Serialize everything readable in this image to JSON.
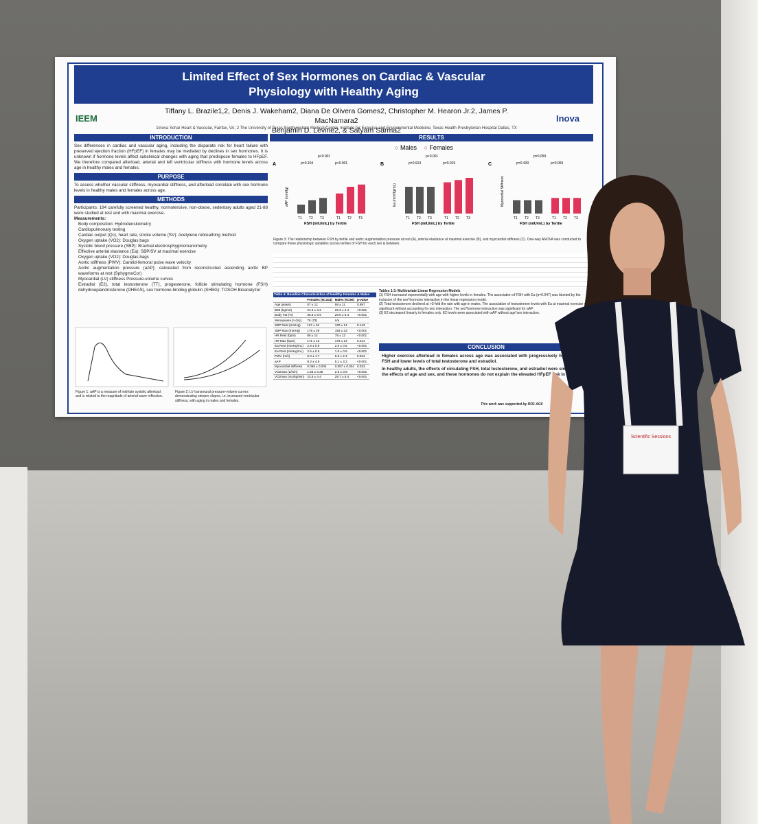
{
  "poster": {
    "title": "Limited Effect of Sex Hormones on Cardiac & Vascular Physiology with Healthy Aging",
    "authors": [
      "Tiffany L. Brazile1,2, Denis J. Wakeham2, Diana De Olivera Gomes2, Christopher M. Hearon Jr.2, James P. MacNamara2",
      "Benjamin D. Levine2, & Satyam Sarma2"
    ],
    "affiliation": "1Inova Schar Heart & Vascular, Fairfax, VA; 2 The University of Texas Southwestern Medical Center, Institute for Exercise and Environmental Medicine, Texas Health Presbyterian Hospital Dallas, TX",
    "logos": [
      "IEEM",
      "Inova"
    ],
    "introduction": {
      "heading": "INTRODUCTION",
      "text": "Sex differences in cardiac and vascular aging, including the disparate risk for heart failure with preserved ejection fraction (HFpEF) in females may be mediated by declines in sex hormones. It is unknown if hormone levels affect subclinical changes with aging that predispose females to HFpEF. We therefore compared afterload, arterial and left ventricular stiffness with hormone levels across age in healthy males and females."
    },
    "purpose": {
      "heading": "PURPOSE",
      "text": "To assess whether vascular stiffness, myocardial stiffness, and afterload correlate with sex hormone levels in healthy males and females across age."
    },
    "methods": {
      "heading": "METHODS",
      "participants": "Participants: 194 carefully screened healthy, normotensive, non-obese, sedentary adults aged 21-88 were studied at rest and with maximal exercise.",
      "measurements": "Measurements:",
      "items": [
        "Body composition: Hydrodensitometry",
        "Cardiopulmonary testing",
        "Cardiac output (Qc), heart rate, stroke volume (SV): Acetylene rebreathing method",
        "Oxygen uptake (VO2): Douglas bags",
        "Systolic blood pressure (SBP): Brachial electrosphygmomanometry",
        "Effective arterial elastance (Ea): SBP/SV at maximal exercise",
        "Oxygen uptake (VO2): Douglas bags",
        "Aortic stiffness (PWV): Carotid-femoral pulse wave velocity",
        "Aortic augmentation pressure (aAP): calculated from reconstructed ascending aortic BP waveforms at rest (SphygmoCor)",
        "Myocardial (LV) stiffness Pressure-volume curves",
        "Estradiol (E2), total testosterone (TT), progesterone, follicle stimulating hormone (FSH) dehydroepiandrosterone (DHEAS), sex hormone binding globulin (SHBG): TOSOH Bioanalyzer"
      ],
      "figure1": "Figure 1: aAP is a measure of mid-late systolic afterload and is related to the magnitude of arterial wave reflection.",
      "figure2": "Figure 2: LV transmural pressure-volume curves demonstrating steeper slopes, i.e. increased ventricular stiffness, with aging in males and females."
    },
    "results": {
      "heading": "RESULTS",
      "legend": [
        "Males",
        "Females"
      ],
      "panels": [
        {
          "label": "A",
          "y_axis": "aAP (mmHg)",
          "p": [
            "p<0.001",
            "p=0.104",
            "p<0.001"
          ]
        },
        {
          "label": "B",
          "y_axis": "Ea (mmHg/mL)",
          "p": [
            "p<0.001",
            "p=0.913",
            "p=0.019"
          ]
        },
        {
          "label": "C",
          "y_axis": "Myocardial Stiffness",
          "p": [
            "p=0.059",
            "p=0.433",
            "p=0.069"
          ]
        }
      ],
      "x_axis": "FSH (mIU/mL) by Tertile",
      "tertiles": [
        "T1",
        "T2",
        "T3"
      ],
      "caption": "Figure 3: The relationship between FSH by tertile and aortic augmentation pressure at rest (A), arterial elastance at maximal exercise (B), and myocardial stiffness (C). One-way ANOVA was conducted to compare these physiologic variables across tertiles of FSH for each sex & between."
    },
    "table4": {
      "title": "Table 4: Baseline Characteristics of Healthy Females & Males",
      "header": [
        "",
        "Females (N=104)",
        "Males (N=90)",
        "p-value"
      ],
      "rows": [
        [
          "Age (years)",
          "57 ± 12",
          "58 ± 11",
          "0.897"
        ],
        [
          "BMI (kg/m2)",
          "24.6 ± 3.2",
          "26.3 ± 2.4",
          "<0.001"
        ],
        [
          "Body Fat (%)",
          "35.9 ± 6.9",
          "28.6 ± 5.4",
          "<0.001"
        ],
        [
          "Menopause [n (%)]",
          "76 (73)",
          "n/a",
          ""
        ],
        [
          "SBP Rest (mmHg)",
          "117 ± 16",
          "120 ± 14",
          "0.143"
        ],
        [
          "SBP Max (mmHg)",
          "176 ± 29",
          "193 ± 23",
          "<0.001"
        ],
        [
          "HR Rest (bpm)",
          "86 ± 14",
          "78 ± 13",
          "<0.001"
        ],
        [
          "HR Max (bpm)",
          "171 ± 13",
          "173 ± 14",
          "0.421"
        ],
        [
          "Ea Rest (mmHg/mL)",
          "2.8 ± 0.8",
          "2.0 ± 0.5",
          "<0.001"
        ],
        [
          "Ea Rest (mmHg/mL)",
          "2.5 ± 0.6",
          "1.9 ± 0.5",
          "<0.001"
        ],
        [
          "PWV (m/s)",
          "6.3 ± 1.7",
          "6.5 ± 2.4",
          "0.534"
        ],
        [
          "aAP",
          "9.3 ± 4.6",
          "5.1 ± 3.2",
          "<0.001"
        ],
        [
          "Myocardial stiffness",
          "0.066 ± 0.034",
          "0.057 ± 0.034",
          "0.033"
        ],
        [
          "VO2max (L/min)",
          "1.53 ± 0.25",
          "2.5 ± 0.5",
          "<0.001"
        ],
        [
          "VO2max (mL/kg/min)",
          "23.6 ± 4.4",
          "29.7 ± 5.4",
          "<0.001"
        ]
      ]
    },
    "regression": {
      "title": "Tables 1-3: Multivariate Linear Regression Models",
      "points": [
        "(1) FSH increased exponentially with age with higher levels in females. The association of FSH with Ea (p=0.047) was blunted by the inclusion of the sex*hormone interaction in the linear regression model.",
        "(2) Total testosterone declined at >3-fold the rate with age in males. The association of testosterone levels with Ea at maximal exercise was significant without accounting for sex interaction. The sex*hormone interaction was significant for aAP.",
        "(3) E2 decreased linearly in females only. E2 levels were associated with aAP without age*sex interaction."
      ]
    },
    "conclusion": {
      "heading": "CONCLUSION",
      "points": [
        "Higher exercise afterload in females across age was associated with progressively higher levels of FSH and lower levels of total testosterone and estradiol.",
        "In healthy adults, the effects of circulating FSH, total testosterone, and estradiol were small relative to the effects of age and sex, and these hormones do not explain the elevated HFpEF risk in females."
      ]
    },
    "support": "This work was supported by RO1 AG0"
  },
  "badge": {
    "event": "Scientific Sessions"
  }
}
